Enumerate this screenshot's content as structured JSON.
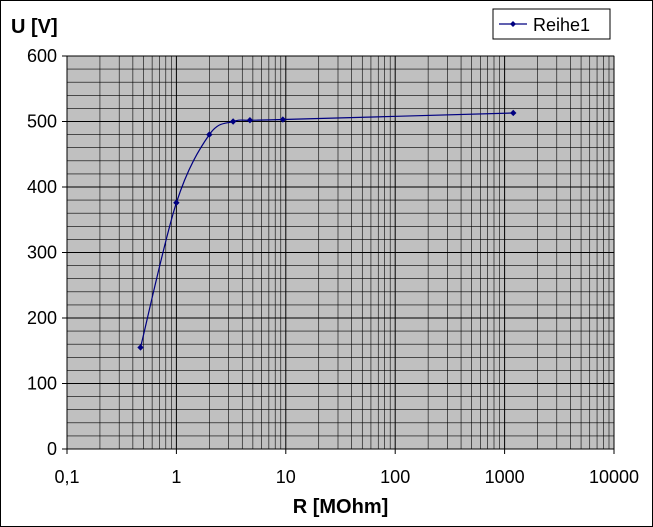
{
  "chart_data": {
    "type": "line",
    "x_scale": "log",
    "xlabel": "R [MOhm]",
    "ylabel": "U [V]",
    "xlim": [
      0.1,
      10000
    ],
    "ylim": [
      0,
      600
    ],
    "x_ticks": [
      "0,1",
      "1",
      "10",
      "100",
      "1000",
      "10000"
    ],
    "y_ticks": [
      "0",
      "100",
      "200",
      "300",
      "400",
      "500",
      "600"
    ],
    "y_major_step": 100,
    "y_minor_step": 20,
    "grid": true,
    "plot_background": "#c0c0c0",
    "legend_position": "top-right",
    "series": [
      {
        "name": "Reihe1",
        "color": "#000080",
        "x": [
          0.47,
          1,
          2,
          3.3,
          4.7,
          9.4,
          1200
        ],
        "y": [
          155,
          376,
          480,
          500,
          502,
          503,
          513
        ]
      }
    ]
  }
}
